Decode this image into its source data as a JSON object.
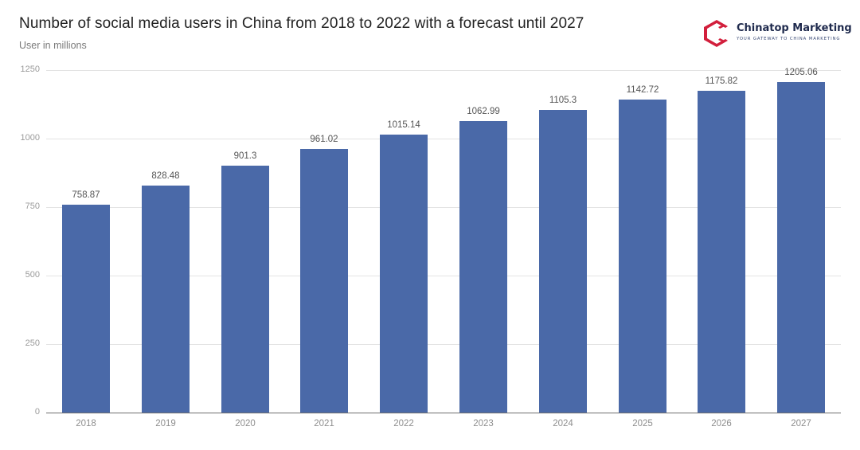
{
  "header": {
    "title": "Number of social media users in China from 2018 to 2022 with a forecast until 2027",
    "subtitle": "User in millions"
  },
  "brand": {
    "name": "Chinatop Marketing",
    "tagline": "YOUR GATEWAY TO CHINA MARKETING",
    "icon": "chinatop-logo-icon",
    "color": "#d21f3c"
  },
  "chart_data": {
    "type": "bar",
    "title": "Number of social media users in China from 2018 to 2022 with a forecast until 2027",
    "subtitle": "User in millions",
    "xlabel": "",
    "ylabel": "User in millions",
    "categories": [
      "2018",
      "2019",
      "2020",
      "2021",
      "2022",
      "2023",
      "2024",
      "2025",
      "2026",
      "2027"
    ],
    "values": [
      758.87,
      828.48,
      901.3,
      961.02,
      1015.14,
      1062.99,
      1105.3,
      1142.72,
      1175.82,
      1205.06
    ],
    "value_labels": [
      "758.87",
      "828.48",
      "901.3",
      "961.02",
      "1015.14",
      "1062.99",
      "1105.3",
      "1142.72",
      "1175.82",
      "1205.06"
    ],
    "yticks": [
      "0",
      "250",
      "500",
      "750",
      "1000",
      "1250"
    ],
    "ylim": [
      0,
      1250
    ],
    "grid": true,
    "legend": "none",
    "bar_color": "#4a69a8"
  }
}
